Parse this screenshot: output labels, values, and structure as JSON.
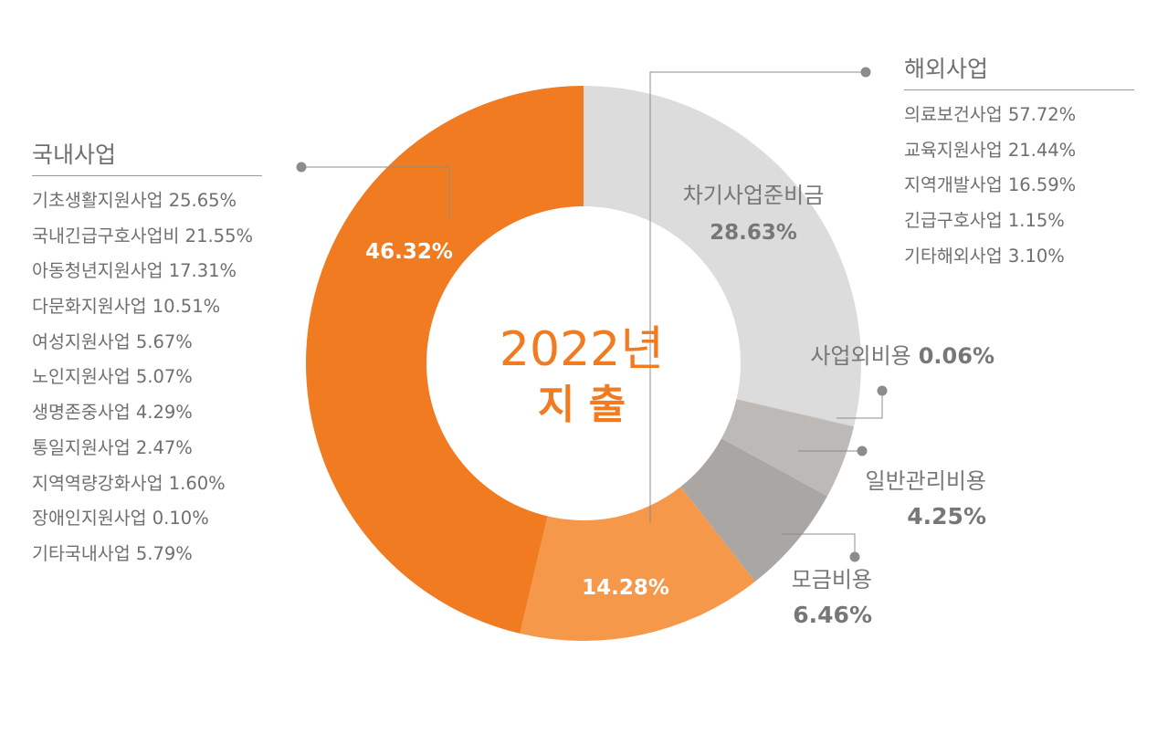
{
  "center": {
    "year": "2022년",
    "label": "지 출"
  },
  "colors": {
    "domestic": "#f07b20",
    "overseas": "#f5984a",
    "reserve": "#dcdcdc",
    "nonbusiness": "#cfc9c5",
    "admin": "#bcb9b7",
    "fundraising": "#a9a6a4",
    "line": "#8c8c8c",
    "text_gray": "#777777"
  },
  "chart_data": {
    "type": "pie",
    "donut": true,
    "slices": [
      {
        "key": "reserve",
        "name": "차기사업준비금",
        "value": 28.63,
        "label": "28.63%"
      },
      {
        "key": "nonbusiness",
        "name": "사업외비용",
        "value": 0.06,
        "label": "0.06%"
      },
      {
        "key": "admin",
        "name": "일반관리비용",
        "value": 4.25,
        "label": "4.25%"
      },
      {
        "key": "fundraising",
        "name": "모금비용",
        "value": 6.46,
        "label": "6.46%"
      },
      {
        "key": "overseas",
        "name": "해외사업",
        "value": 14.28,
        "label": "14.28%"
      },
      {
        "key": "domestic",
        "name": "국내사업",
        "value": 46.32,
        "label": "46.32%"
      }
    ]
  },
  "domestic": {
    "title": "국내사업",
    "items": [
      "기초생활지원사업 25.65%",
      "국내긴급구호사업비 21.55%",
      "아동청년지원사업 17.31%",
      "다문화지원사업 10.51%",
      "여성지원사업 5.67%",
      "노인지원사업 5.07%",
      "생명존중사업 4.29%",
      "통일지원사업 2.47%",
      "지역역량강화사업 1.60%",
      "장애인지원사업 0.10%",
      "기타국내사업 5.79%"
    ]
  },
  "overseas": {
    "title": "해외사업",
    "items": [
      "의료보건사업 57.72%",
      "교육지원사업 21.44%",
      "지역개발사업 16.59%",
      "긴급구호사업 1.15%",
      "기타해외사업 3.10%"
    ]
  }
}
